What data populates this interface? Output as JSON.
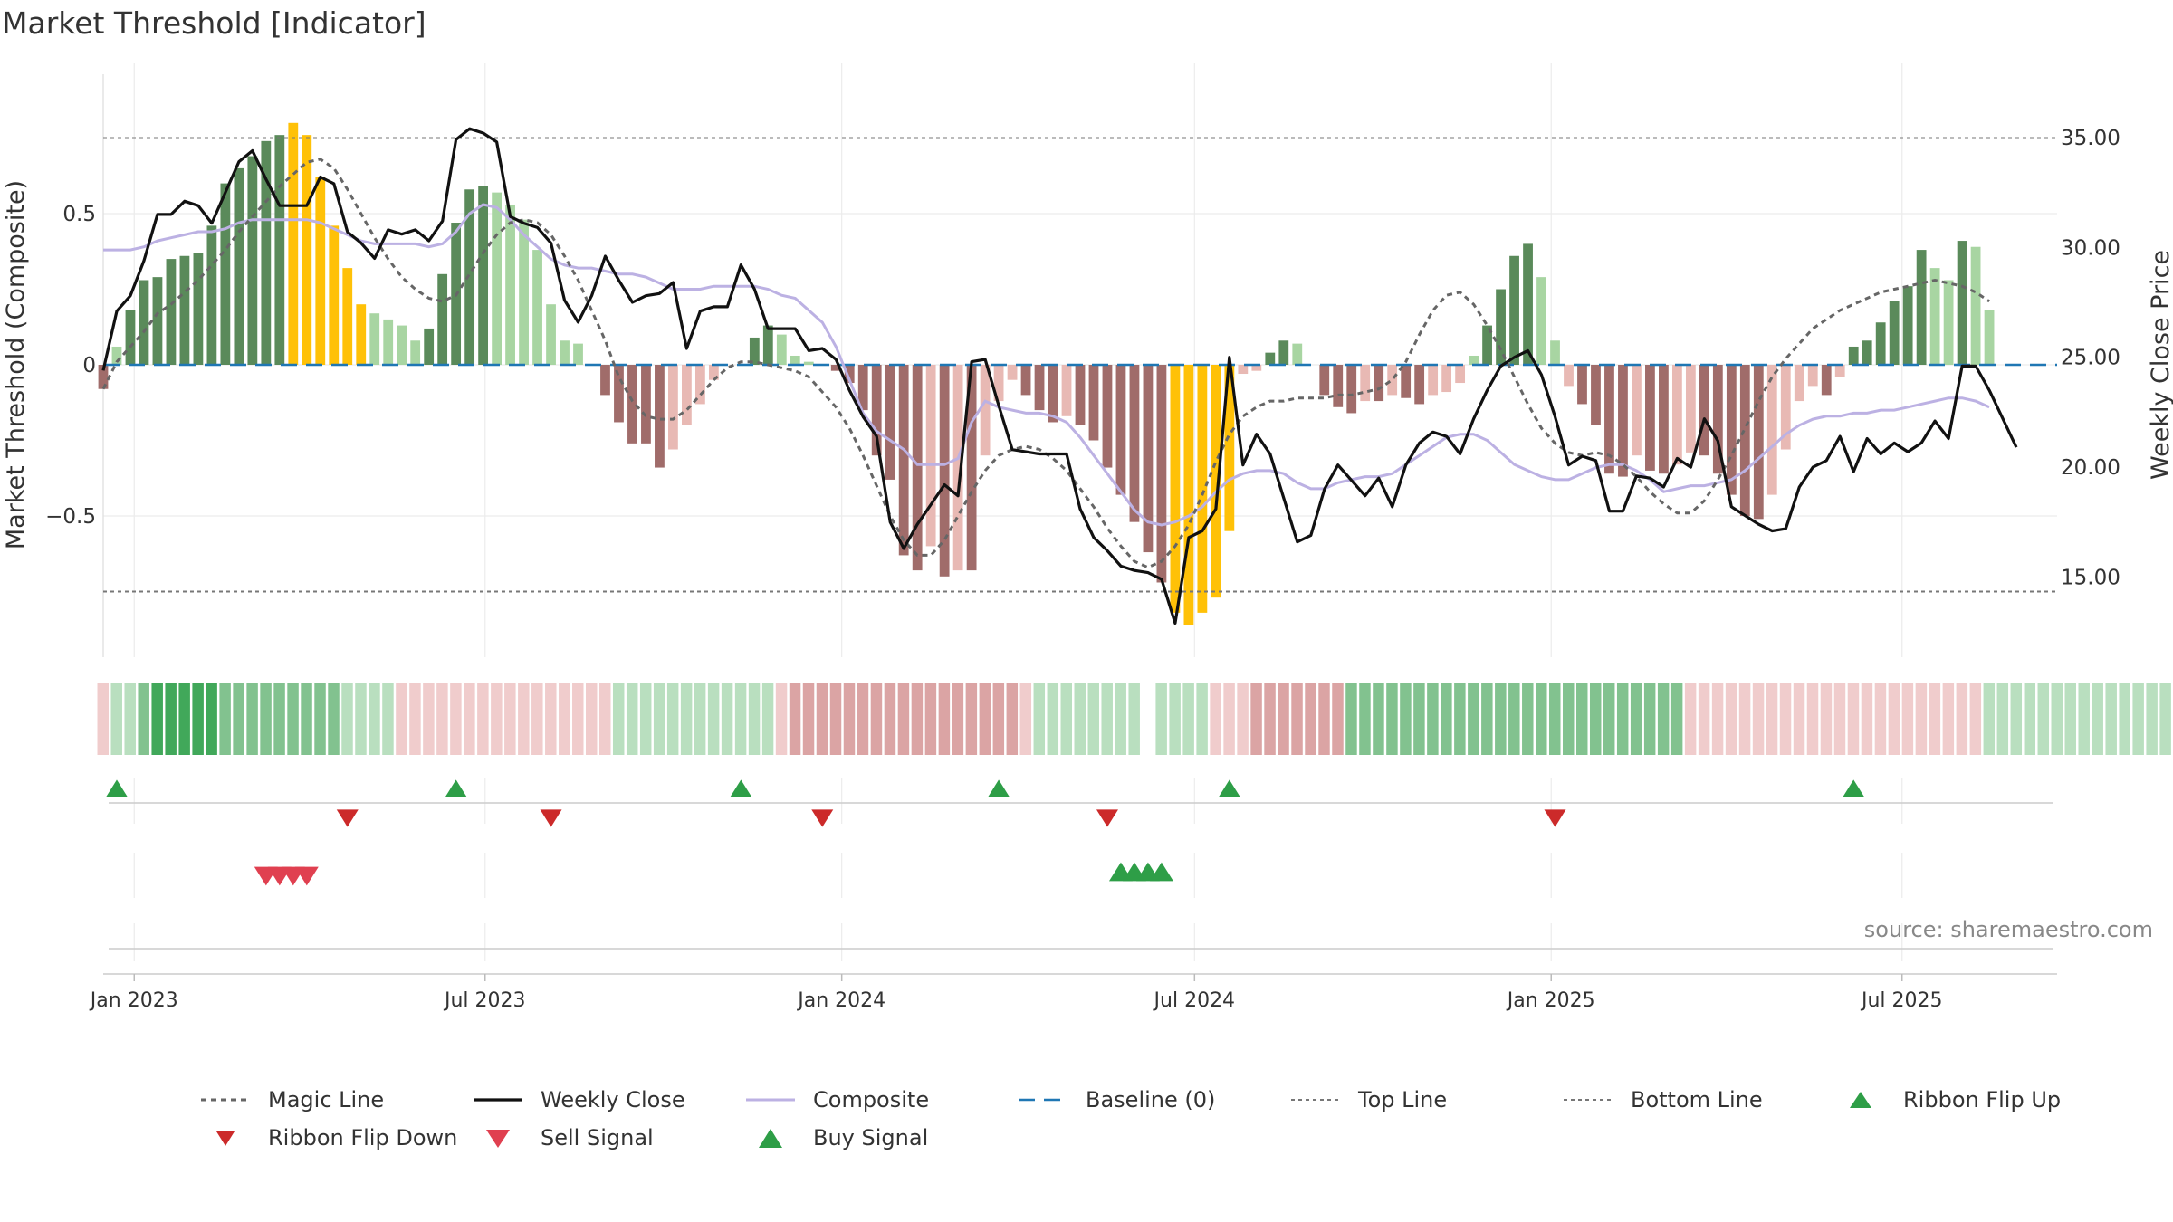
{
  "title": "Market Threshold [Indicator]",
  "source": "source: sharemaestro.com",
  "colors": {
    "bull_strong": "#5a8a5a",
    "bull_weak": "#a8d5a2",
    "bear_strong": "#a06c6a",
    "bear_weak": "#e8b9b4",
    "extreme": "#ffc107",
    "price": "#111111",
    "composite": "#bcb1e3",
    "magic": "#666666",
    "baseline": "#1f77b4",
    "band_line": "#777777",
    "flip_up": "#2e9e47",
    "flip_down": "#cc2a2a",
    "sell": "#e04050",
    "buy": "#2e9e47"
  },
  "chart_data": {
    "type": "bar",
    "title": "Market Threshold [Indicator]",
    "ylabel_left": "Market Threshold (Composite)",
    "ylabel_right": "Weekly Close Price",
    "ylim_left": [
      -0.96,
      0.96
    ],
    "ylim_right": [
      12.0,
      38.2
    ],
    "left_ticks": [
      {
        "value": 0.5,
        "label": "0.5"
      },
      {
        "value": 0,
        "label": "0"
      },
      {
        "value": -0.5,
        "label": "−0.5"
      }
    ],
    "right_ticks": [
      {
        "value": 35,
        "label": "35.00"
      },
      {
        "value": 30,
        "label": "30.00"
      },
      {
        "value": 25,
        "label": "25.00"
      },
      {
        "value": 20,
        "label": "20.00"
      },
      {
        "value": 15,
        "label": "15.00"
      }
    ],
    "top_line": 0.75,
    "bottom_line": -0.75,
    "x_start": "2022-12-16",
    "x_end": "2025-09-19",
    "x_ticks": [
      {
        "date": "2023-01-01",
        "label": "Jan 2023"
      },
      {
        "date": "2023-07-01",
        "label": "Jul 2023"
      },
      {
        "date": "2024-01-01",
        "label": "Jan 2024"
      },
      {
        "date": "2024-07-01",
        "label": "Jul 2024"
      },
      {
        "date": "2025-01-01",
        "label": "Jan 2025"
      },
      {
        "date": "2025-07-01",
        "label": "Jul 2025"
      }
    ],
    "first_week": "2022-12-16",
    "bars": [
      -0.08,
      0.06,
      0.18,
      0.28,
      0.29,
      0.35,
      0.36,
      0.37,
      0.46,
      0.6,
      0.65,
      0.69,
      0.74,
      0.76,
      0.8,
      0.76,
      0.62,
      0.46,
      0.32,
      0.2,
      0.17,
      0.15,
      0.13,
      0.08,
      0.12,
      0.3,
      0.47,
      0.58,
      0.59,
      0.57,
      0.53,
      0.48,
      0.38,
      0.2,
      0.08,
      0.07,
      0,
      -0.1,
      -0.19,
      -0.26,
      -0.26,
      -0.34,
      -0.28,
      -0.2,
      -0.13,
      -0.05,
      0,
      0,
      0.09,
      0.13,
      0.1,
      0.03,
      0.01,
      0,
      -0.02,
      -0.06,
      -0.15,
      -0.3,
      -0.38,
      -0.63,
      -0.68,
      -0.6,
      -0.7,
      -0.68,
      -0.68,
      -0.3,
      -0.12,
      -0.05,
      -0.1,
      -0.15,
      -0.19,
      -0.17,
      -0.2,
      -0.25,
      -0.34,
      -0.43,
      -0.52,
      -0.62,
      -0.72,
      -0.82,
      -0.86,
      -0.82,
      -0.77,
      -0.55,
      -0.03,
      -0.02,
      0.04,
      0.08,
      0.07,
      0,
      -0.1,
      -0.14,
      -0.16,
      -0.12,
      -0.12,
      -0.1,
      -0.11,
      -0.13,
      -0.1,
      -0.09,
      -0.06,
      0.03,
      0.13,
      0.25,
      0.36,
      0.4,
      0.29,
      0.08,
      -0.07,
      -0.13,
      -0.2,
      -0.36,
      -0.37,
      -0.3,
      -0.35,
      -0.36,
      -0.33,
      -0.29,
      -0.3,
      -0.36,
      -0.43,
      -0.5,
      -0.51,
      -0.43,
      -0.28,
      -0.12,
      -0.07,
      -0.1,
      -0.04,
      0.06,
      0.08,
      0.14,
      0.21,
      0.26,
      0.38,
      0.32,
      0.28,
      0.41,
      0.39,
      0.18
    ],
    "extreme_weeks": [
      14,
      15,
      16,
      17,
      18,
      19,
      79,
      80,
      81,
      82,
      83
    ],
    "price": [
      24.4,
      27.1,
      27.8,
      29.4,
      31.5,
      31.5,
      32.1,
      31.9,
      31.1,
      32.5,
      33.9,
      34.4,
      33.1,
      31.9,
      31.9,
      31.9,
      33.2,
      32.9,
      30.7,
      30.2,
      29.5,
      30.8,
      30.6,
      30.8,
      30.3,
      31.2,
      34.9,
      35.4,
      35.2,
      34.8,
      31.4,
      31.1,
      30.9,
      30.2,
      27.6,
      26.6,
      27.8,
      29.6,
      28.5,
      27.5,
      27.8,
      27.9,
      28.4,
      25.4,
      27.1,
      27.3,
      27.3,
      29.2,
      28.1,
      26.3,
      26.3,
      26.3,
      25.3,
      25.4,
      24.9,
      23.5,
      22.3,
      21.4,
      17.5,
      16.3,
      17.4,
      18.3,
      19.2,
      18.7,
      24.8,
      24.9,
      22.8,
      20.8,
      20.7,
      20.6,
      20.6,
      20.6,
      18.1,
      16.8,
      16.2,
      15.5,
      15.3,
      15.2,
      14.9,
      12.9,
      16.8,
      17.1,
      18.1,
      25.0,
      20.1,
      21.5,
      20.6,
      18.6,
      16.6,
      16.9,
      19.0,
      20.1,
      19.4,
      18.7,
      19.5,
      18.2,
      20.1,
      21.1,
      21.6,
      21.4,
      20.6,
      22.2,
      23.5,
      24.6,
      25.0,
      25.3,
      24.2,
      22.3,
      20.1,
      20.5,
      20.3,
      18.0,
      18.0,
      19.6,
      19.5,
      19.1,
      20.4,
      20.0,
      22.2,
      21.2,
      18.2,
      17.8,
      17.4,
      17.1,
      17.2,
      19.1,
      20.0,
      20.3,
      21.4,
      19.8,
      21.3,
      20.6,
      21.1,
      20.7,
      21.1,
      22.1,
      21.3,
      24.6,
      24.6,
      23.5,
      22.2,
      20.9
    ],
    "composite": [
      0.38,
      0.38,
      0.38,
      0.39,
      0.41,
      0.42,
      0.43,
      0.44,
      0.44,
      0.45,
      0.47,
      0.48,
      0.48,
      0.48,
      0.48,
      0.48,
      0.47,
      0.45,
      0.43,
      0.41,
      0.4,
      0.4,
      0.4,
      0.4,
      0.39,
      0.4,
      0.44,
      0.5,
      0.53,
      0.52,
      0.48,
      0.43,
      0.39,
      0.35,
      0.33,
      0.32,
      0.32,
      0.31,
      0.3,
      0.3,
      0.29,
      0.27,
      0.25,
      0.25,
      0.25,
      0.26,
      0.26,
      0.26,
      0.26,
      0.25,
      0.23,
      0.22,
      0.18,
      0.14,
      0.06,
      -0.05,
      -0.16,
      -0.22,
      -0.25,
      -0.28,
      -0.33,
      -0.33,
      -0.33,
      -0.31,
      -0.19,
      -0.12,
      -0.14,
      -0.15,
      -0.16,
      -0.16,
      -0.17,
      -0.19,
      -0.24,
      -0.3,
      -0.36,
      -0.42,
      -0.48,
      -0.52,
      -0.53,
      -0.52,
      -0.5,
      -0.47,
      -0.42,
      -0.38,
      -0.36,
      -0.35,
      -0.35,
      -0.36,
      -0.39,
      -0.41,
      -0.41,
      -0.39,
      -0.38,
      -0.37,
      -0.37,
      -0.36,
      -0.33,
      -0.3,
      -0.27,
      -0.24,
      -0.23,
      -0.23,
      -0.25,
      -0.29,
      -0.33,
      -0.35,
      -0.37,
      -0.38,
      -0.38,
      -0.36,
      -0.34,
      -0.33,
      -0.33,
      -0.35,
      -0.38,
      -0.42,
      -0.41,
      -0.4,
      -0.4,
      -0.39,
      -0.38,
      -0.35,
      -0.31,
      -0.27,
      -0.23,
      -0.2,
      -0.18,
      -0.17,
      -0.17,
      -0.16,
      -0.16,
      -0.15,
      -0.15,
      -0.14,
      -0.13,
      -0.12,
      -0.11,
      -0.11,
      -0.12,
      -0.14
    ],
    "magic": [
      -0.08,
      0.01,
      0.06,
      0.11,
      0.17,
      0.2,
      0.24,
      0.28,
      0.33,
      0.38,
      0.44,
      0.49,
      0.54,
      0.59,
      0.63,
      0.67,
      0.68,
      0.65,
      0.58,
      0.5,
      0.42,
      0.35,
      0.29,
      0.25,
      0.22,
      0.21,
      0.23,
      0.3,
      0.37,
      0.43,
      0.47,
      0.48,
      0.47,
      0.43,
      0.36,
      0.28,
      0.18,
      0.08,
      -0.04,
      -0.12,
      -0.17,
      -0.18,
      -0.18,
      -0.15,
      -0.1,
      -0.05,
      -0.01,
      0.01,
      0.01,
      0,
      -0.01,
      -0.02,
      -0.04,
      -0.09,
      -0.14,
      -0.21,
      -0.3,
      -0.4,
      -0.5,
      -0.58,
      -0.63,
      -0.63,
      -0.58,
      -0.5,
      -0.42,
      -0.35,
      -0.3,
      -0.28,
      -0.27,
      -0.28,
      -0.31,
      -0.35,
      -0.41,
      -0.47,
      -0.54,
      -0.6,
      -0.65,
      -0.67,
      -0.65,
      -0.6,
      -0.53,
      -0.43,
      -0.32,
      -0.23,
      -0.17,
      -0.14,
      -0.12,
      -0.12,
      -0.11,
      -0.11,
      -0.11,
      -0.1,
      -0.1,
      -0.09,
      -0.08,
      -0.05,
      0.01,
      0.1,
      0.18,
      0.23,
      0.24,
      0.2,
      0.13,
      0.05,
      -0.04,
      -0.13,
      -0.21,
      -0.26,
      -0.29,
      -0.3,
      -0.29,
      -0.3,
      -0.33,
      -0.37,
      -0.42,
      -0.46,
      -0.49,
      -0.49,
      -0.45,
      -0.38,
      -0.3,
      -0.21,
      -0.12,
      -0.04,
      0.02,
      0.07,
      0.12,
      0.15,
      0.18,
      0.2,
      0.22,
      0.24,
      0.25,
      0.26,
      0.27,
      0.28,
      0.27,
      0.26,
      0.24,
      0.21
    ],
    "ribbon": [
      -1,
      1,
      1,
      2,
      3,
      3,
      3,
      3,
      3,
      2,
      2,
      2,
      2,
      2,
      2,
      2,
      2,
      2,
      1,
      1,
      1,
      1,
      -1,
      -1,
      -1,
      -1,
      -1,
      -1,
      -1,
      -1,
      -1,
      -1,
      -1,
      -1,
      -1,
      -1,
      -1,
      -1,
      1,
      1,
      1,
      1,
      1,
      1,
      1,
      1,
      1,
      1,
      1,
      1,
      -1,
      -2,
      -2,
      -2,
      -2,
      -2,
      -2,
      -2,
      -2,
      -2,
      -2,
      -2,
      -2,
      -2,
      -2,
      -2,
      -2,
      -2,
      -1,
      1,
      1,
      1,
      1,
      1,
      1,
      1,
      1,
      1,
      1,
      1,
      1,
      1,
      -1,
      -1,
      -1,
      -2,
      -2,
      -2,
      -2,
      -2,
      -2,
      -2,
      2,
      2,
      2,
      2,
      2,
      2,
      2,
      2,
      2,
      2,
      2,
      2,
      2,
      2,
      2,
      2,
      2,
      2,
      2,
      2,
      2,
      2,
      2,
      2,
      2,
      -1,
      -1,
      -1,
      -1,
      -1,
      -1,
      -1,
      -1,
      -1,
      -1,
      -1,
      -1,
      -1,
      -1,
      -1,
      -1,
      -1,
      -1,
      -1,
      -1,
      -1,
      -1,
      1,
      1,
      1,
      1,
      1,
      1,
      1,
      1,
      1,
      1,
      1,
      1,
      1,
      1,
      1
    ],
    "ribbon_gaps": [
      77
    ],
    "flip_up_weeks": [
      1,
      26,
      47,
      66,
      83,
      129
    ],
    "flip_down_weeks": [
      18,
      33,
      53,
      74,
      107
    ],
    "sell_signal_weeks": [
      12,
      13,
      14,
      15
    ],
    "buy_signal_weeks": [
      75,
      76,
      77,
      78
    ],
    "legend": [
      {
        "key": "magic",
        "label": "Magic Line"
      },
      {
        "key": "price",
        "label": "Weekly Close"
      },
      {
        "key": "composite",
        "label": "Composite"
      },
      {
        "key": "baseline",
        "label": "Baseline (0)"
      },
      {
        "key": "top",
        "label": "Top Line"
      },
      {
        "key": "bottom",
        "label": "Bottom Line"
      },
      {
        "key": "flip_up",
        "label": "Ribbon Flip Up"
      },
      {
        "key": "flip_down",
        "label": "Ribbon Flip Down"
      },
      {
        "key": "sell",
        "label": "Sell Signal"
      },
      {
        "key": "buy",
        "label": "Buy Signal"
      }
    ]
  }
}
